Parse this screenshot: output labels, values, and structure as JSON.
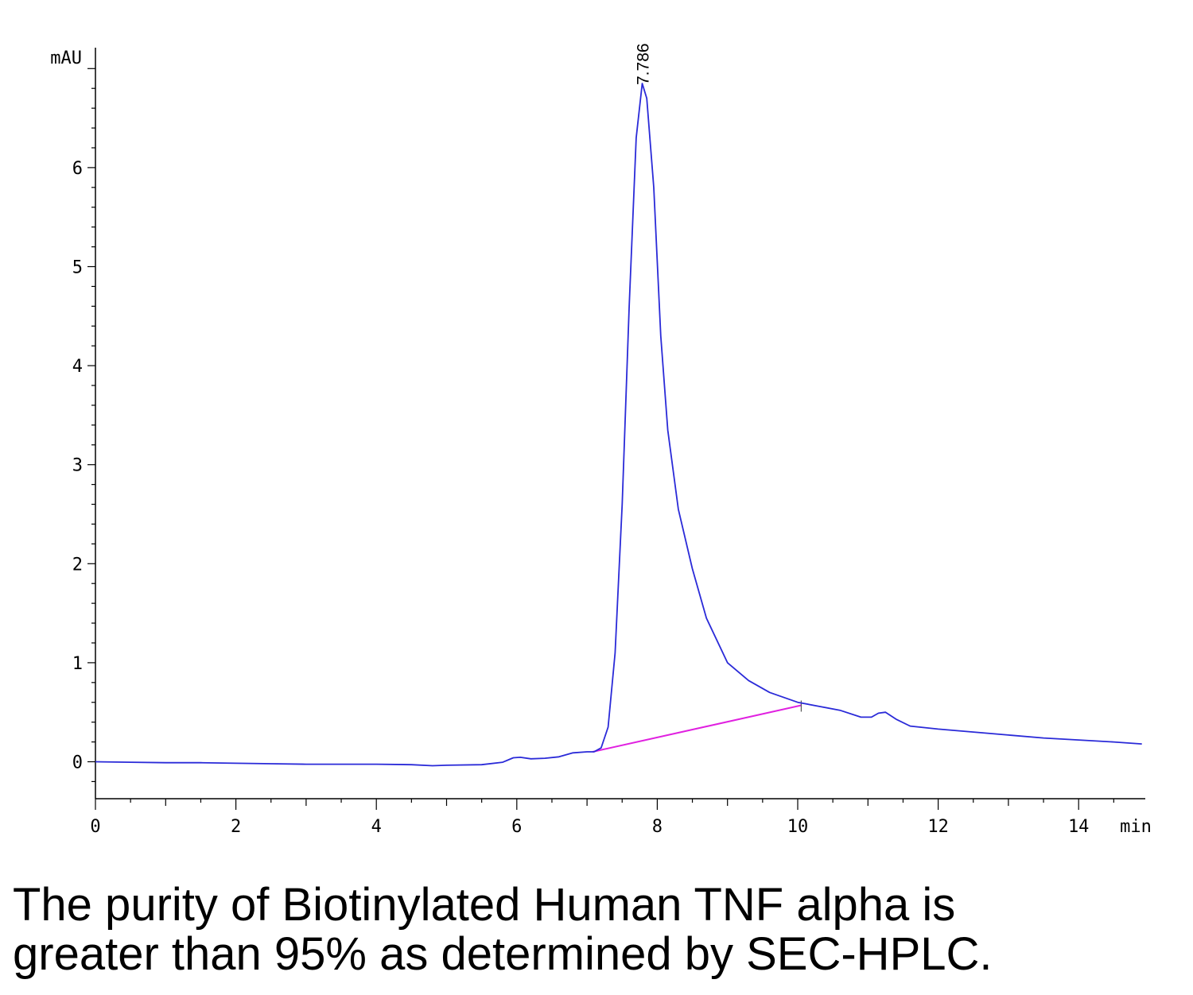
{
  "chart_data": {
    "type": "line",
    "xlabel": "min",
    "ylabel": "mAU",
    "xlim": [
      0,
      14.95
    ],
    "ylim": [
      -0.37,
      7.2
    ],
    "x_ticks": [
      0,
      2,
      4,
      6,
      8,
      10,
      12,
      14
    ],
    "y_ticks": [
      0,
      1,
      2,
      3,
      4,
      5,
      6
    ],
    "grid": false,
    "series": [
      {
        "color": "#2a2ad8",
        "points": [
          [
            0,
            0.0
          ],
          [
            0.5,
            -0.005
          ],
          [
            1,
            -0.01
          ],
          [
            1.5,
            -0.01
          ],
          [
            2,
            -0.015
          ],
          [
            2.5,
            -0.02
          ],
          [
            3,
            -0.025
          ],
          [
            3.5,
            -0.025
          ],
          [
            4,
            -0.025
          ],
          [
            4.5,
            -0.03
          ],
          [
            4.8,
            -0.04
          ],
          [
            5,
            -0.035
          ],
          [
            5.5,
            -0.03
          ],
          [
            5.8,
            -0.005
          ],
          [
            5.95,
            0.04
          ],
          [
            6.05,
            0.045
          ],
          [
            6.2,
            0.03
          ],
          [
            6.4,
            0.035
          ],
          [
            6.6,
            0.05
          ],
          [
            6.8,
            0.09
          ],
          [
            7.0,
            0.1
          ],
          [
            7.1,
            0.1
          ],
          [
            7.2,
            0.14
          ],
          [
            7.3,
            0.35
          ],
          [
            7.4,
            1.1
          ],
          [
            7.5,
            2.6
          ],
          [
            7.6,
            4.6
          ],
          [
            7.7,
            6.3
          ],
          [
            7.786,
            6.85
          ],
          [
            7.85,
            6.7
          ],
          [
            7.95,
            5.8
          ],
          [
            8.05,
            4.3
          ],
          [
            8.15,
            3.35
          ],
          [
            8.3,
            2.55
          ],
          [
            8.5,
            1.95
          ],
          [
            8.7,
            1.45
          ],
          [
            9.0,
            1.0
          ],
          [
            9.3,
            0.82
          ],
          [
            9.6,
            0.7
          ],
          [
            10.0,
            0.6
          ],
          [
            10.3,
            0.56
          ],
          [
            10.6,
            0.52
          ],
          [
            10.9,
            0.45
          ],
          [
            11.05,
            0.45
          ],
          [
            11.15,
            0.49
          ],
          [
            11.25,
            0.5
          ],
          [
            11.4,
            0.43
          ],
          [
            11.6,
            0.36
          ],
          [
            12.0,
            0.33
          ],
          [
            12.5,
            0.3
          ],
          [
            13.0,
            0.27
          ],
          [
            13.5,
            0.24
          ],
          [
            14.0,
            0.22
          ],
          [
            14.5,
            0.2
          ],
          [
            14.9,
            0.18
          ]
        ]
      }
    ],
    "baseline": {
      "color": "#e020e0",
      "points": [
        [
          7.08,
          0.1
        ],
        [
          10.05,
          0.57
        ]
      ]
    },
    "peak_labels": [
      {
        "x": 7.786,
        "y": 6.85,
        "text": "7.786"
      }
    ]
  },
  "caption": {
    "line1": "The purity of Biotinylated Human TNF alpha is",
    "line2": "greater than 95% as determined by SEC-HPLC."
  }
}
